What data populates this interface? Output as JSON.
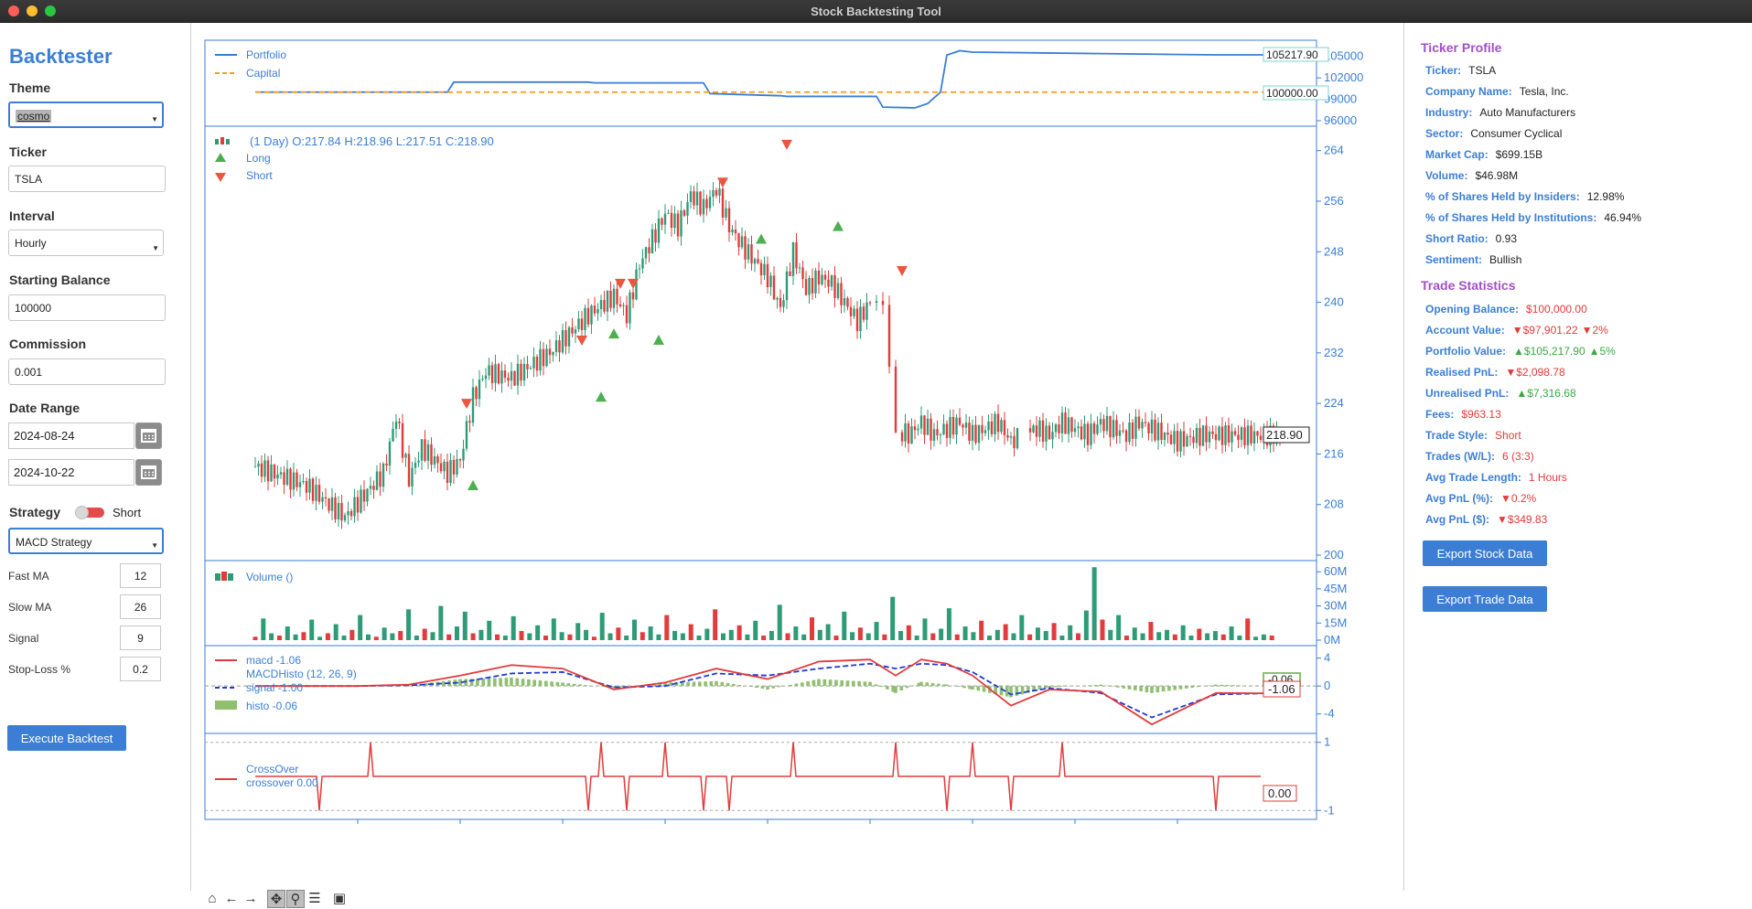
{
  "window": {
    "title": "Stock Backtesting Tool"
  },
  "sidebar": {
    "app_title": "Backtester",
    "theme_label": "Theme",
    "theme_value": "cosmo",
    "ticker_label": "Ticker",
    "ticker_value": "TSLA",
    "interval_label": "Interval",
    "interval_value": "Hourly",
    "balance_label": "Starting Balance",
    "balance_value": "100000",
    "commission_label": "Commission",
    "commission_value": "0.001",
    "date_range_label": "Date Range",
    "date_start": "2024-08-24",
    "date_end": "2024-10-22",
    "strategy_label": "Strategy",
    "strategy_toggle_label": "Short",
    "strategy_value": "MACD Strategy",
    "params": [
      {
        "label": "Fast MA",
        "value": "12"
      },
      {
        "label": "Slow MA",
        "value": "26"
      },
      {
        "label": "Signal",
        "value": "9"
      },
      {
        "label": "Stop-Loss %",
        "value": "0.2"
      }
    ],
    "execute_label": "Execute Backtest"
  },
  "chart_data": [
    {
      "type": "line",
      "panel": "portfolio",
      "series": [
        {
          "name": "Portfolio",
          "color": "#3b7ed4",
          "x": [
            0,
            30,
            31,
            52,
            53,
            70,
            71,
            82,
            83,
            97,
            98,
            103,
            105,
            107,
            108,
            110,
            112,
            150,
            160
          ],
          "values": [
            100000,
            100000,
            101400,
            101400,
            101300,
            101300,
            99800,
            99500,
            99400,
            99400,
            97900,
            97800,
            98400,
            100000,
            105200,
            105800,
            105600,
            105217.9,
            105217.9
          ]
        },
        {
          "name": "Capital",
          "color": "#ff9a1a",
          "dashed": true,
          "x": [
            0,
            160
          ],
          "values": [
            100000,
            100000
          ]
        }
      ],
      "y_ticks": [
        "96000",
        "99000",
        "102000",
        "105000"
      ],
      "ylim": [
        96000,
        106500
      ],
      "labels": {
        "portfolio_last": "105217.90",
        "capital_last": "100000.00"
      }
    },
    {
      "type": "candlestick",
      "panel": "price",
      "header": "(1 Day) O:217.84 H:218.96 L:217.51 C:218.90",
      "legend": [
        "Long",
        "Short"
      ],
      "close_points_x": [
        0,
        8,
        14,
        20,
        22,
        24,
        26,
        30,
        32,
        34,
        36,
        40,
        46,
        52,
        56,
        58,
        60,
        62,
        64,
        66,
        68,
        70,
        72,
        74,
        76,
        80,
        82,
        84,
        86,
        88,
        90,
        94,
        96,
        98,
        100,
        102,
        104,
        106,
        108,
        110,
        112,
        114,
        116,
        118,
        120,
        122,
        124,
        126,
        128,
        130,
        132,
        134,
        136,
        138,
        140,
        142,
        144,
        148,
        152,
        156,
        160
      ],
      "close_points": [
        214,
        211,
        206,
        213,
        222,
        212,
        217,
        213,
        215,
        225,
        229,
        228,
        232,
        238,
        241,
        238,
        246,
        250,
        254,
        252,
        257,
        255,
        258,
        252,
        249,
        244,
        239,
        248,
        242,
        244,
        243,
        237,
        240,
        238,
        220,
        219,
        221,
        219,
        220,
        221,
        219,
        220,
        221,
        218,
        219,
        220,
        219,
        221,
        220,
        219,
        221,
        220,
        219,
        221,
        220,
        219,
        218,
        219,
        219,
        218.9,
        218.9
      ],
      "long_signals_x": [
        34,
        54,
        56,
        63,
        79,
        91
      ],
      "long_signals_y": [
        211,
        225,
        235,
        234,
        250,
        252
      ],
      "short_signals_x": [
        33,
        51,
        57,
        59,
        73,
        83,
        101
      ],
      "short_signals_y": [
        224,
        234,
        243,
        243,
        259,
        265,
        245
      ],
      "y_ticks": [
        "200",
        "208",
        "216",
        "224",
        "232",
        "240",
        "248",
        "256",
        "264"
      ],
      "ylim": [
        200,
        267
      ],
      "last_label": "218.90"
    },
    {
      "type": "bar",
      "panel": "volume",
      "legend": "Volume ()",
      "y_ticks": [
        "0M",
        "15M",
        "30M",
        "45M",
        "60M"
      ],
      "ylim": [
        0,
        65
      ],
      "values": [
        3,
        19,
        6,
        4,
        12,
        5,
        7,
        18,
        3,
        6,
        14,
        4,
        9,
        22,
        5,
        3,
        11,
        6,
        8,
        27,
        4,
        10,
        7,
        30,
        5,
        12,
        25,
        6,
        9,
        17,
        5,
        4,
        21,
        8,
        6,
        13,
        4,
        19,
        7,
        5,
        15,
        9,
        3,
        24,
        6,
        11,
        4,
        18,
        7,
        12,
        5,
        22,
        8,
        6,
        14,
        4,
        10,
        27,
        6,
        9,
        13,
        5,
        17,
        4,
        8,
        31,
        6,
        12,
        5,
        20,
        9,
        14,
        4,
        25,
        7,
        11,
        6,
        16,
        5,
        38,
        8,
        13,
        4,
        19,
        6,
        10,
        28,
        5,
        12,
        7,
        17,
        4,
        9,
        14,
        6,
        22,
        5,
        11,
        8,
        15,
        4,
        13,
        6,
        26,
        64,
        18,
        9,
        22,
        4,
        11,
        6,
        16,
        7,
        9,
        5,
        13,
        4,
        10,
        6,
        8,
        5,
        12,
        4,
        19,
        3,
        5,
        4
      ]
    },
    {
      "type": "line",
      "panel": "macd",
      "legend": [
        "macd -1.06",
        "MACDHisto (12, 26, 9)",
        "signal -1.00",
        "histo -0.06"
      ],
      "series_x": [
        0,
        8,
        16,
        24,
        32,
        40,
        48,
        56,
        64,
        72,
        80,
        88,
        96,
        100,
        104,
        108,
        112,
        118,
        124,
        132,
        140,
        150,
        160
      ],
      "macd": [
        0,
        0,
        0,
        0.2,
        1.5,
        3,
        2.5,
        -0.5,
        0.5,
        2.5,
        1,
        3.5,
        3.8,
        1.5,
        3.8,
        3.2,
        1.5,
        -2.8,
        -0.5,
        -0.8,
        -5.5,
        -1.0,
        -1.06
      ],
      "signal": [
        0,
        0,
        0,
        0.1,
        0.5,
        1.8,
        2.0,
        -0.2,
        0,
        1.8,
        1.5,
        2.5,
        3.2,
        2.5,
        3.2,
        3,
        2,
        -1.2,
        -0.3,
        -1.0,
        -4.5,
        -1.2,
        -1.0
      ],
      "y_ticks": [
        "-4",
        "0",
        "4"
      ],
      "ylim": [
        -6,
        5
      ],
      "labels": {
        "histo_last": "-0.06",
        "macd_last": "-1.06"
      }
    },
    {
      "type": "line",
      "panel": "crossover",
      "legend": [
        "CrossOver",
        "crossover 0.00"
      ],
      "spikes_x": [
        10,
        18,
        52,
        54,
        58,
        64,
        70,
        74,
        84,
        100,
        108,
        112,
        118,
        126,
        150
      ],
      "spikes_y": [
        -1,
        1,
        -1,
        1,
        -1,
        1,
        -1,
        -1,
        1,
        1,
        -1,
        1,
        -1,
        1,
        -1
      ],
      "y_ticks": [
        "-1",
        "1"
      ],
      "ylim": [
        -1.1,
        1.1
      ],
      "last_label": "0.00"
    }
  ],
  "toolbar": {
    "home": "⌂",
    "back": "←",
    "forward": "→",
    "pan": "✥",
    "zoom": "⚲",
    "config": "☰",
    "save": "▣"
  },
  "profile": {
    "title": "Ticker Profile",
    "rows": [
      {
        "k": "Ticker:",
        "v": "TSLA"
      },
      {
        "k": "Company Name:",
        "v": "Tesla, Inc."
      },
      {
        "k": "Industry:",
        "v": "Auto Manufacturers"
      },
      {
        "k": "Sector:",
        "v": "Consumer Cyclical"
      },
      {
        "k": "Market Cap:",
        "v": "$699.15B"
      },
      {
        "k": "Volume:",
        "v": "$46.98M"
      },
      {
        "k": "% of Shares Held by Insiders:",
        "v": "12.98%"
      },
      {
        "k": "% of Shares Held by Institutions:",
        "v": "46.94%"
      },
      {
        "k": "Short Ratio:",
        "v": "0.93"
      },
      {
        "k": "Sentiment:",
        "v": "Bullish"
      }
    ]
  },
  "stats": {
    "title": "Trade Statistics",
    "rows": [
      {
        "k": "Opening Balance:",
        "v": "$100,000.00",
        "cls": "red",
        "chg": ""
      },
      {
        "k": "Account Value:",
        "v": "▼$97,901.22",
        "cls": "red",
        "chg": "▼2%"
      },
      {
        "k": "Portfolio Value:",
        "v": "▲$105,217.90",
        "cls": "green",
        "chg": "▲5%"
      },
      {
        "k": "Realised PnL:",
        "v": "▼$2,098.78",
        "cls": "red",
        "chg": ""
      },
      {
        "k": "Unrealised PnL:",
        "v": "▲$7,316.68",
        "cls": "green",
        "chg": ""
      },
      {
        "k": "Fees:",
        "v": "$963.13",
        "cls": "red",
        "chg": ""
      },
      {
        "k": "Trade Style:",
        "v": "Short",
        "cls": "red",
        "chg": ""
      },
      {
        "k": "Trades (W/L):",
        "v": "6 (3:3)",
        "cls": "red",
        "chg": ""
      },
      {
        "k": "Avg Trade Length:",
        "v": "1 Hours",
        "cls": "red",
        "chg": ""
      },
      {
        "k": "Avg PnL (%):",
        "v": "▼0.2%",
        "cls": "red",
        "chg": ""
      },
      {
        "k": "Avg PnL ($):",
        "v": "▼$349.83",
        "cls": "red",
        "chg": ""
      }
    ],
    "export_stock": "Export Stock Data",
    "export_trade": "Export Trade Data"
  },
  "colors": {
    "accent": "#3b7ed4",
    "up": "#2e9b77",
    "down": "#e23b3b",
    "signal": "#1f3bd6",
    "histo": "#8fbf6f",
    "profile_title": "#a24fc7"
  }
}
